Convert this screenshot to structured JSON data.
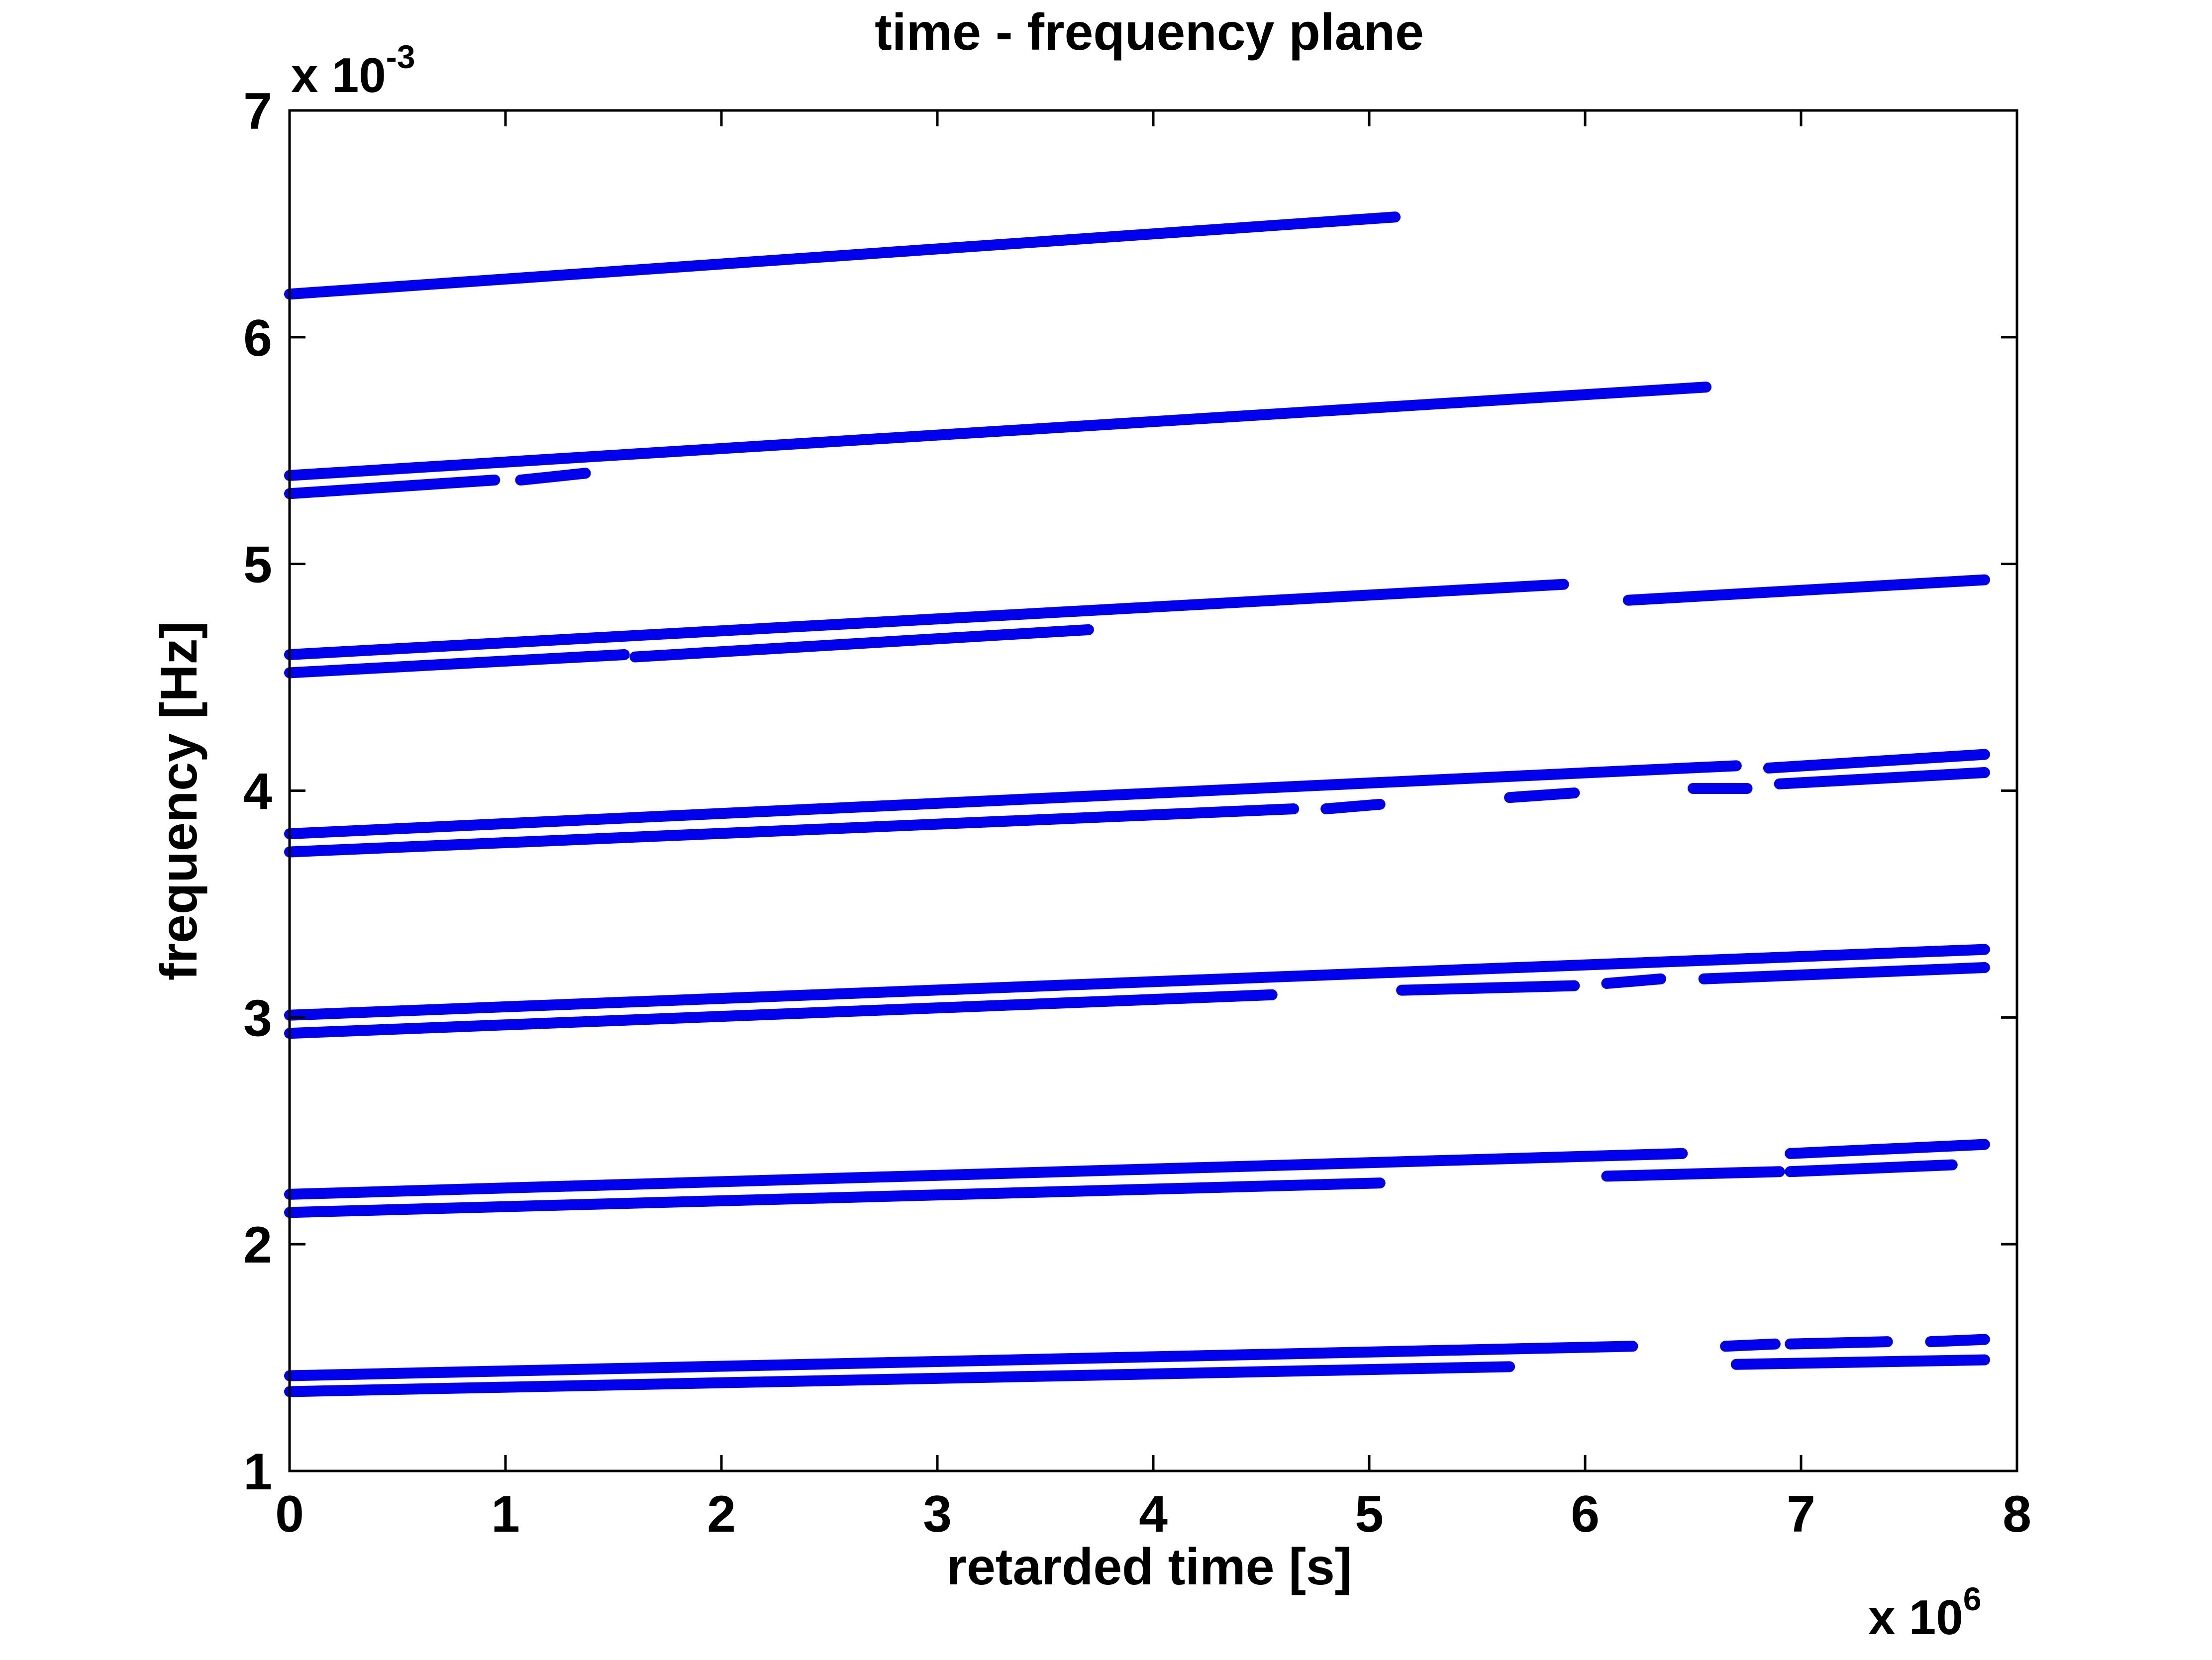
{
  "chart_data": {
    "type": "line",
    "title": "time - frequency plane",
    "xlabel": "retarded time [s]",
    "ylabel": "frequency [Hz]",
    "x_multiplier_label": "x 10",
    "x_multiplier_exp": "6",
    "y_multiplier_label": "x 10",
    "y_multiplier_exp": "-3",
    "x_scale": 1000000,
    "y_scale": 0.001,
    "xlim": [
      0,
      8
    ],
    "ylim": [
      1,
      7
    ],
    "xticks": [
      0,
      1,
      2,
      3,
      4,
      5,
      6,
      7,
      8
    ],
    "xtick_labels": [
      "0",
      "1",
      "2",
      "3",
      "4",
      "5",
      "6",
      "7",
      "8"
    ],
    "yticks": [
      1,
      2,
      3,
      4,
      5,
      6,
      7
    ],
    "ytick_labels": [
      "1",
      "2",
      "3",
      "4",
      "5",
      "6",
      "7"
    ],
    "grid": false,
    "line_color": "#0000ee",
    "segments": [
      {
        "x": [
          0.0,
          5.12
        ],
        "y": [
          6.19,
          6.53
        ]
      },
      {
        "x": [
          0.0,
          6.56
        ],
        "y": [
          5.39,
          5.78
        ]
      },
      {
        "x": [
          0.0,
          0.95
        ],
        "y": [
          5.31,
          5.37
        ]
      },
      {
        "x": [
          1.07,
          1.37
        ],
        "y": [
          5.37,
          5.4
        ]
      },
      {
        "x": [
          0.0,
          5.9
        ],
        "y": [
          4.6,
          4.91
        ]
      },
      {
        "x": [
          6.2,
          7.85
        ],
        "y": [
          4.84,
          4.93
        ]
      },
      {
        "x": [
          0.0,
          1.55
        ],
        "y": [
          4.52,
          4.6
        ]
      },
      {
        "x": [
          1.6,
          3.7
        ],
        "y": [
          4.59,
          4.71
        ]
      },
      {
        "x": [
          0.0,
          6.7
        ],
        "y": [
          3.81,
          4.11
        ]
      },
      {
        "x": [
          6.85,
          7.85
        ],
        "y": [
          4.1,
          4.16
        ]
      },
      {
        "x": [
          0.0,
          4.65
        ],
        "y": [
          3.73,
          3.92
        ]
      },
      {
        "x": [
          4.8,
          5.05
        ],
        "y": [
          3.92,
          3.94
        ]
      },
      {
        "x": [
          5.65,
          5.95
        ],
        "y": [
          3.97,
          3.99
        ]
      },
      {
        "x": [
          6.5,
          6.75
        ],
        "y": [
          4.01,
          4.01
        ]
      },
      {
        "x": [
          6.9,
          7.85
        ],
        "y": [
          4.03,
          4.08
        ]
      },
      {
        "x": [
          0.0,
          7.85
        ],
        "y": [
          3.01,
          3.3
        ]
      },
      {
        "x": [
          0.0,
          4.55
        ],
        "y": [
          2.93,
          3.1
        ]
      },
      {
        "x": [
          5.15,
          5.95
        ],
        "y": [
          3.12,
          3.14
        ]
      },
      {
        "x": [
          6.1,
          6.35
        ],
        "y": [
          3.15,
          3.17
        ]
      },
      {
        "x": [
          6.55,
          7.85
        ],
        "y": [
          3.17,
          3.22
        ]
      },
      {
        "x": [
          0.0,
          6.45
        ],
        "y": [
          2.22,
          2.4
        ]
      },
      {
        "x": [
          6.95,
          7.85
        ],
        "y": [
          2.4,
          2.44
        ]
      },
      {
        "x": [
          0.0,
          5.05
        ],
        "y": [
          2.14,
          2.27
        ]
      },
      {
        "x": [
          6.1,
          6.9
        ],
        "y": [
          2.3,
          2.32
        ]
      },
      {
        "x": [
          6.95,
          7.7
        ],
        "y": [
          2.32,
          2.35
        ]
      },
      {
        "x": [
          0.0,
          6.22
        ],
        "y": [
          1.42,
          1.55
        ]
      },
      {
        "x": [
          0.0,
          5.65
        ],
        "y": [
          1.35,
          1.46
        ]
      },
      {
        "x": [
          6.65,
          6.88
        ],
        "y": [
          1.55,
          1.56
        ]
      },
      {
        "x": [
          6.95,
          7.4
        ],
        "y": [
          1.56,
          1.57
        ]
      },
      {
        "x": [
          7.6,
          7.85
        ],
        "y": [
          1.57,
          1.58
        ]
      },
      {
        "x": [
          6.7,
          7.85
        ],
        "y": [
          1.47,
          1.49
        ]
      }
    ]
  }
}
